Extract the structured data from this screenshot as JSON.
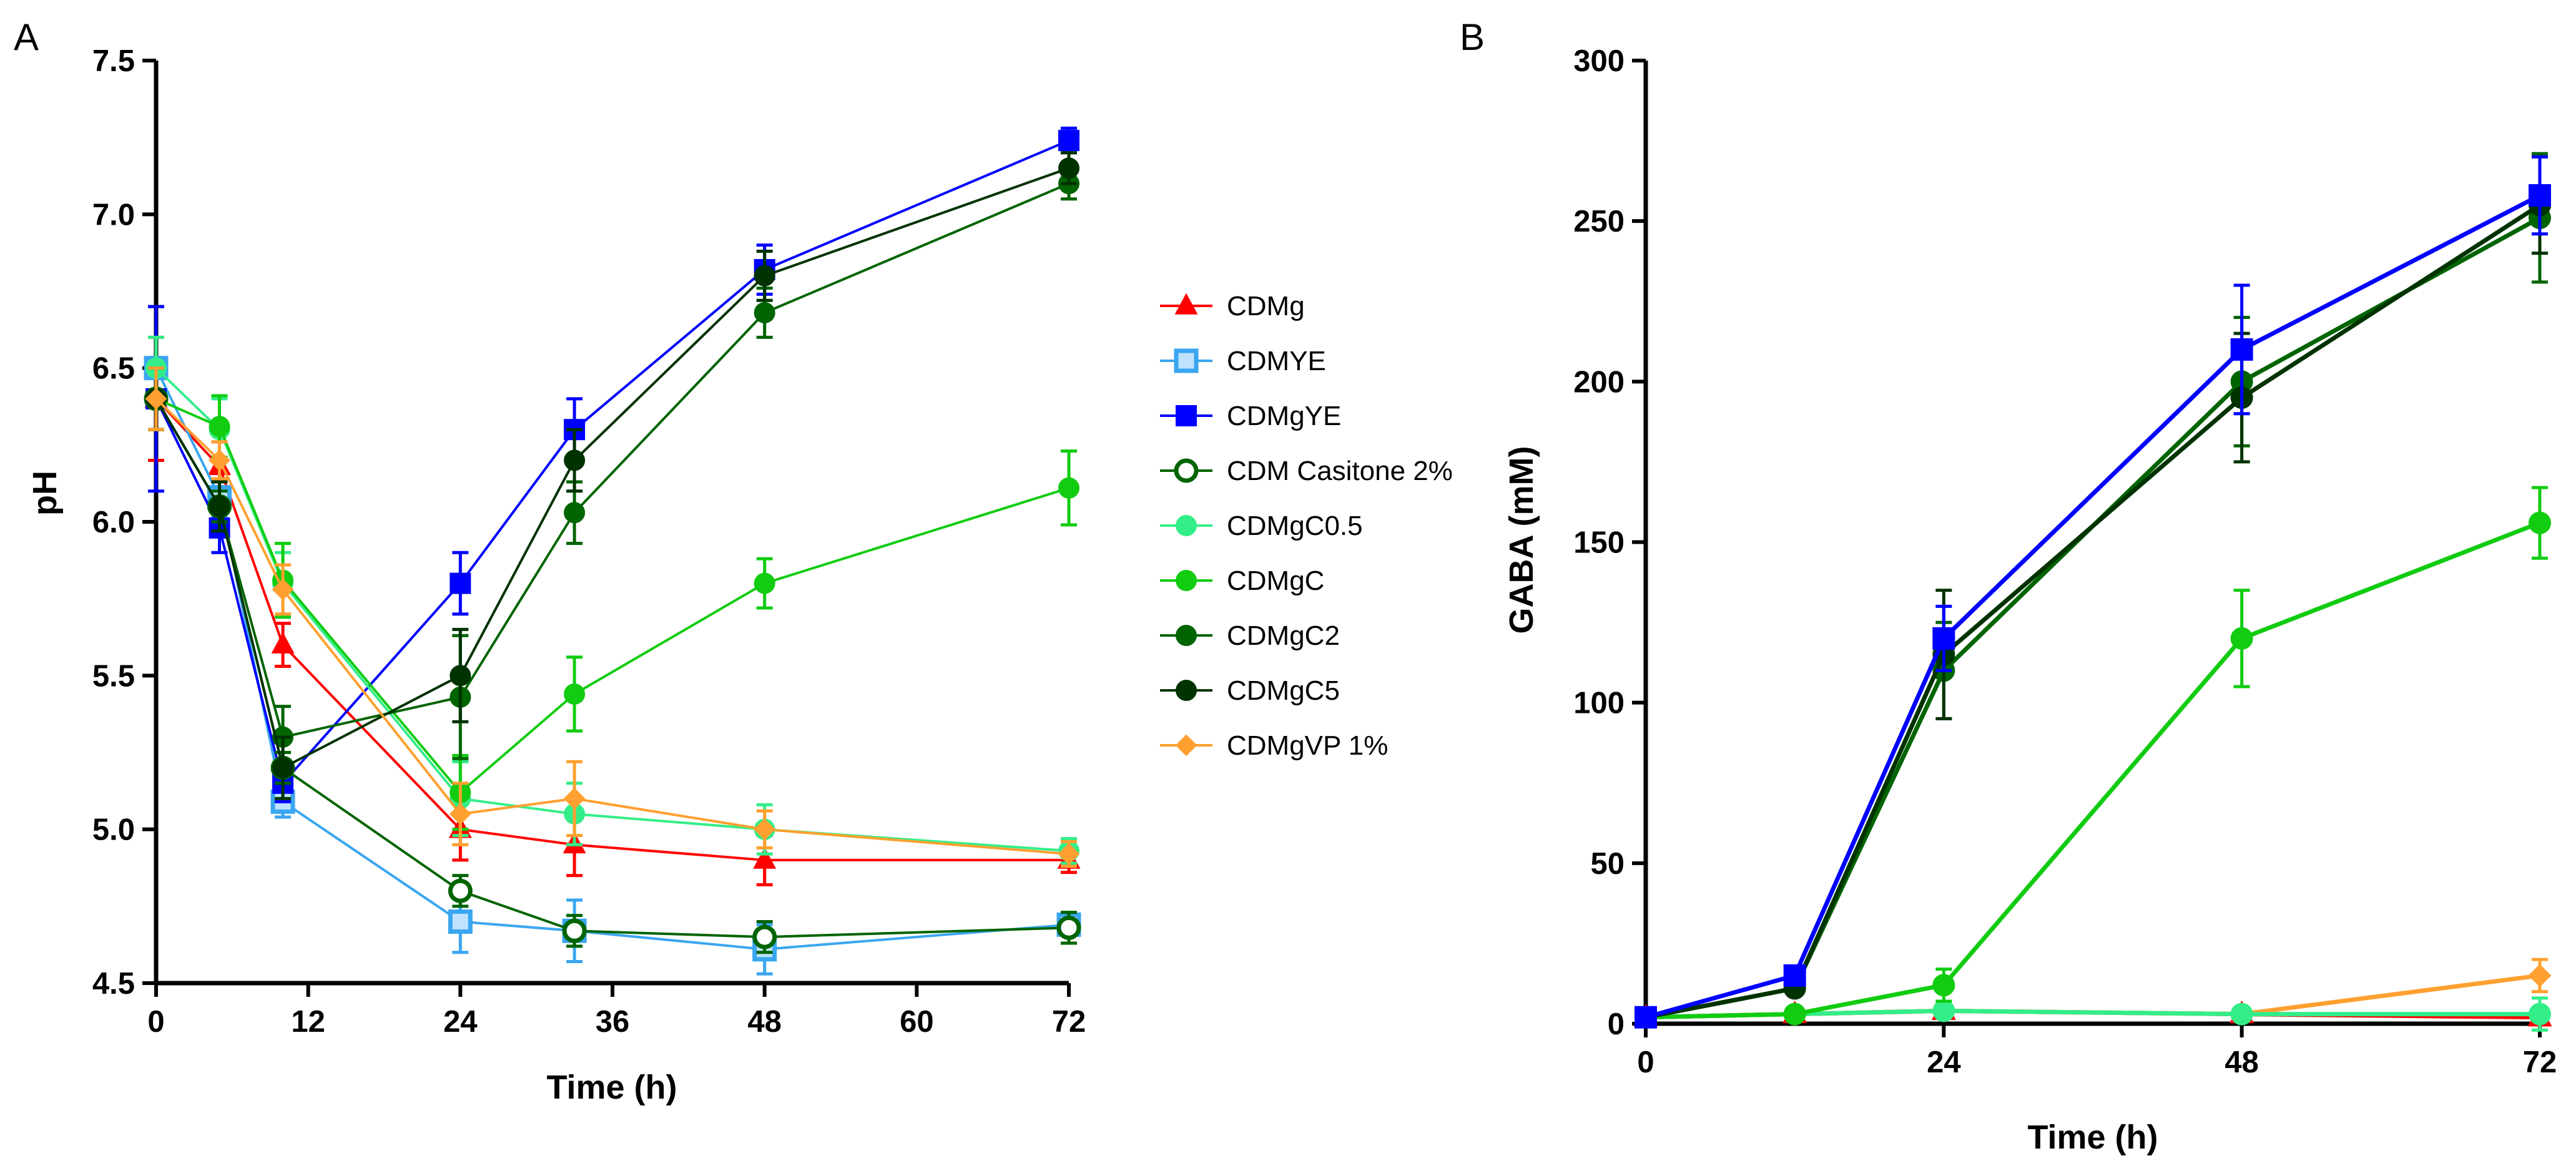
{
  "panels": [
    {
      "label": "A",
      "xlabel": "Time (h)",
      "ylabel": "pH",
      "xlim": [
        0,
        72
      ],
      "ylim": [
        4.5,
        7.5
      ],
      "xticks": [
        0,
        12,
        24,
        36,
        48,
        60,
        72
      ],
      "yticks": [
        "4.5",
        "5.0",
        "5.5",
        "6.0",
        "6.5",
        "7.0",
        "7.5"
      ]
    },
    {
      "label": "B",
      "xlabel": "Time (h)",
      "ylabel": "GABA (mM)",
      "xlim": [
        0,
        72
      ],
      "ylim": [
        0,
        300
      ],
      "xticks": [
        0,
        24,
        48,
        72
      ],
      "yticks": [
        "0",
        "50",
        "100",
        "150",
        "200",
        "250",
        "300"
      ]
    }
  ],
  "legend": [
    {
      "name": "CDMg",
      "color": "#ff0000",
      "marker": "triangle",
      "fill": true
    },
    {
      "name": "CDMYE",
      "color": "#3aa6f0",
      "marker": "square",
      "fill": false
    },
    {
      "name": "CDMgYE",
      "color": "#0000ff",
      "marker": "square",
      "fill": true
    },
    {
      "name": "CDM Casitone 2%",
      "color": "#006400",
      "marker": "circle",
      "fill": false
    },
    {
      "name": "CDMgC0.5",
      "color": "#33ee88",
      "marker": "circle",
      "fill": true
    },
    {
      "name": "CDMgC",
      "color": "#11cc11",
      "marker": "circle",
      "fill": true
    },
    {
      "name": "CDMgC2",
      "color": "#006400",
      "marker": "circle",
      "fill": true
    },
    {
      "name": "CDMgC5",
      "color": "#003300",
      "marker": "circle",
      "fill": true
    },
    {
      "name": "CDMgVP 1%",
      "color": "#ffa030",
      "marker": "diamond",
      "fill": true
    }
  ],
  "chart_data": [
    {
      "type": "line",
      "panel": "A",
      "title": "",
      "xlabel": "Time (h)",
      "ylabel": "pH",
      "xlim": [
        0,
        72
      ],
      "ylim": [
        4.5,
        7.5
      ],
      "series": [
        {
          "name": "CDMg",
          "x": [
            0,
            5,
            10,
            24,
            33,
            48,
            72
          ],
          "y": [
            6.4,
            6.18,
            5.6,
            5.0,
            4.95,
            4.9,
            4.9
          ],
          "err": [
            0.2,
            0.08,
            0.07,
            0.1,
            0.1,
            0.08,
            0.04
          ]
        },
        {
          "name": "CDMYE",
          "x": [
            0,
            5,
            10,
            24,
            33,
            48,
            72
          ],
          "y": [
            6.5,
            6.08,
            5.09,
            4.7,
            4.67,
            4.61,
            4.69
          ],
          "err": [
            0.2,
            0.06,
            0.05,
            0.1,
            0.1,
            0.08,
            0.03
          ]
        },
        {
          "name": "CDMgYE",
          "x": [
            0,
            5,
            10,
            24,
            33,
            48,
            72
          ],
          "y": [
            6.4,
            5.98,
            5.15,
            5.8,
            6.3,
            6.82,
            7.24
          ],
          "err": [
            0.3,
            0.08,
            0.06,
            0.1,
            0.1,
            0.08,
            0.04
          ]
        },
        {
          "name": "CDM Casitone 2%",
          "x": [
            0,
            5,
            10,
            24,
            33,
            48,
            72
          ],
          "y": [
            6.4,
            6.05,
            5.2,
            4.8,
            4.67,
            4.65,
            4.68
          ],
          "err": [
            0.1,
            0.05,
            0.05,
            0.05,
            0.05,
            0.05,
            0.05
          ]
        },
        {
          "name": "CDMgC0.5",
          "x": [
            0,
            5,
            10,
            24,
            33,
            48,
            72
          ],
          "y": [
            6.5,
            6.3,
            5.8,
            5.1,
            5.05,
            5.0,
            4.93
          ],
          "err": [
            0.1,
            0.1,
            0.1,
            0.12,
            0.1,
            0.08,
            0.04
          ]
        },
        {
          "name": "CDMgC",
          "x": [
            0,
            5,
            10,
            24,
            33,
            48,
            72
          ],
          "y": [
            6.4,
            6.31,
            5.81,
            5.12,
            5.44,
            5.8,
            6.11
          ],
          "err": [
            0.1,
            0.1,
            0.12,
            0.12,
            0.12,
            0.08,
            0.12
          ]
        },
        {
          "name": "CDMgC2",
          "x": [
            0,
            5,
            10,
            24,
            33,
            48,
            72
          ],
          "y": [
            6.4,
            6.05,
            5.3,
            5.43,
            6.03,
            6.68,
            7.1
          ],
          "err": [
            0.1,
            0.08,
            0.1,
            0.2,
            0.1,
            0.08,
            0.05
          ]
        },
        {
          "name": "CDMgC5",
          "x": [
            0,
            5,
            10,
            24,
            33,
            48,
            72
          ],
          "y": [
            6.4,
            6.05,
            5.2,
            5.5,
            6.2,
            6.8,
            7.15
          ],
          "err": [
            0.1,
            0.08,
            0.1,
            0.15,
            0.1,
            0.08,
            0.05
          ]
        },
        {
          "name": "CDMgVP 1%",
          "x": [
            0,
            5,
            10,
            24,
            33,
            48,
            72
          ],
          "y": [
            6.4,
            6.2,
            5.78,
            5.05,
            5.1,
            5.0,
            4.92
          ],
          "err": [
            0.1,
            0.06,
            0.08,
            0.1,
            0.12,
            0.06,
            0.04
          ]
        }
      ]
    },
    {
      "type": "line",
      "panel": "B",
      "title": "",
      "xlabel": "Time (h)",
      "ylabel": "GABA (mM)",
      "xlim": [
        0,
        72
      ],
      "ylim": [
        0,
        300
      ],
      "series": [
        {
          "name": "CDMg",
          "x": [
            0,
            12,
            24,
            48,
            72
          ],
          "y": [
            2,
            3,
            4,
            3,
            2
          ],
          "err": [
            0,
            0,
            0,
            0,
            0
          ]
        },
        {
          "name": "CDMgVP 1%",
          "x": [
            0,
            12,
            24,
            48,
            72
          ],
          "y": [
            2,
            3,
            4,
            3,
            15
          ],
          "err": [
            0,
            0,
            0,
            0,
            5
          ]
        },
        {
          "name": "CDMgC0.5",
          "x": [
            0,
            12,
            24,
            48,
            72
          ],
          "y": [
            2,
            3,
            4,
            3,
            3
          ],
          "err": [
            0,
            0,
            0,
            0,
            5
          ]
        },
        {
          "name": "CDMgC",
          "x": [
            0,
            12,
            24,
            48,
            72
          ],
          "y": [
            2,
            3,
            12,
            120,
            156
          ],
          "err": [
            0,
            0,
            5,
            15,
            11
          ]
        },
        {
          "name": "CDMgC2",
          "x": [
            0,
            12,
            24,
            48,
            72
          ],
          "y": [
            2,
            11,
            110,
            200,
            251
          ],
          "err": [
            0,
            0,
            15,
            20,
            20
          ]
        },
        {
          "name": "CDMgC5",
          "x": [
            0,
            12,
            24,
            48,
            72
          ],
          "y": [
            2,
            11,
            115,
            195,
            255
          ],
          "err": [
            0,
            0,
            20,
            20,
            15
          ]
        },
        {
          "name": "CDMgYE",
          "x": [
            0,
            12,
            24,
            48,
            72
          ],
          "y": [
            2,
            15,
            120,
            210,
            258
          ],
          "err": [
            0,
            0,
            10,
            20,
            12
          ]
        }
      ]
    }
  ]
}
